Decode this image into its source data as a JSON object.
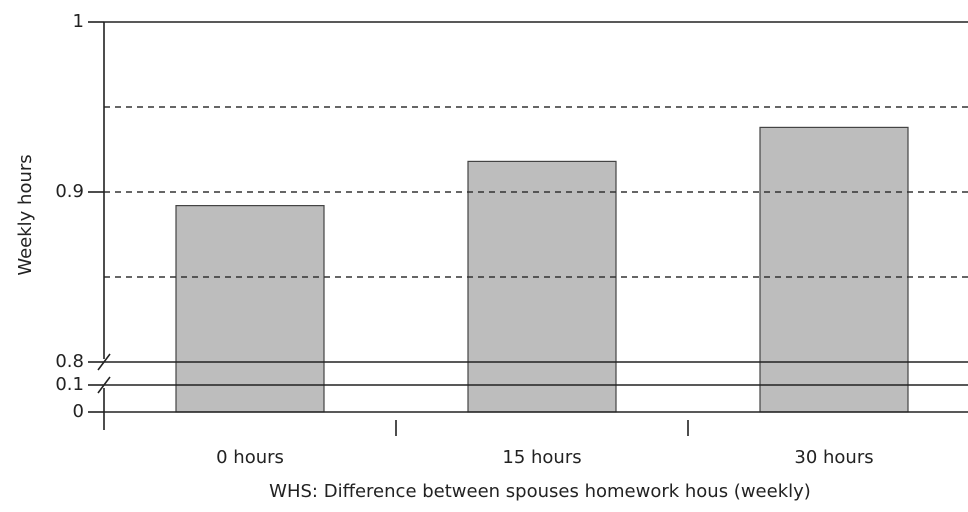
{
  "chart_data": {
    "type": "bar",
    "x_label": "WHS: Difference between spouses  homework hous (weekly)",
    "y_label": "Weekly hours",
    "categories": [
      "0 hours",
      "15 hours",
      "30 hours"
    ],
    "values": [
      0.892,
      0.918,
      0.938
    ],
    "color": "#bdbdbd",
    "ylim": [
      0,
      1
    ],
    "axis_break": [
      0.1,
      0.8
    ],
    "yticks": [
      0,
      0.1,
      0.8,
      0.9,
      1
    ],
    "grid_lines": [
      0.85,
      0.9,
      0.95
    ],
    "grid": true
  }
}
